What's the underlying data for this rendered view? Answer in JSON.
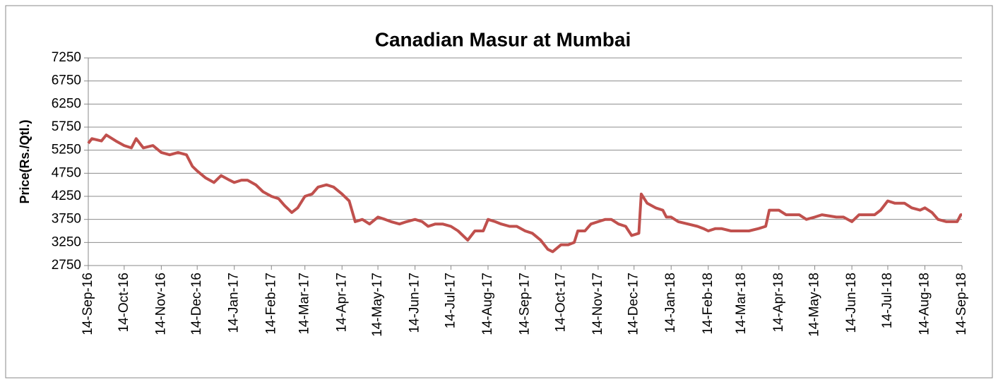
{
  "chart_data": {
    "type": "line",
    "title": "Canadian Masur at Mumbai",
    "y_label": "Price(Rs./Qtl.)",
    "ylim": [
      2750,
      7250
    ],
    "yticks": [
      2750,
      3250,
      3750,
      4250,
      4750,
      5250,
      5750,
      6250,
      6750,
      7250
    ],
    "xlim": [
      "2016-09-14",
      "2018-09-14"
    ],
    "xticks": [
      {
        "value": "2016-09-14",
        "label": "14-Sep-16"
      },
      {
        "value": "2016-10-14",
        "label": "14-Oct-16"
      },
      {
        "value": "2016-11-14",
        "label": "14-Nov-16"
      },
      {
        "value": "2016-12-14",
        "label": "14-Dec-16"
      },
      {
        "value": "2017-01-14",
        "label": "14-Jan-17"
      },
      {
        "value": "2017-02-14",
        "label": "14-Feb-17"
      },
      {
        "value": "2017-03-14",
        "label": "14-Mar-17"
      },
      {
        "value": "2017-04-14",
        "label": "14-Apr-17"
      },
      {
        "value": "2017-05-14",
        "label": "14-May-17"
      },
      {
        "value": "2017-06-14",
        "label": "14-Jun-17"
      },
      {
        "value": "2017-07-14",
        "label": "14-Jul-17"
      },
      {
        "value": "2017-08-14",
        "label": "14-Aug-17"
      },
      {
        "value": "2017-09-14",
        "label": "14-Sep-17"
      },
      {
        "value": "2017-10-14",
        "label": "14-Oct-17"
      },
      {
        "value": "2017-11-14",
        "label": "14-Nov-17"
      },
      {
        "value": "2017-12-14",
        "label": "14-Dec-17"
      },
      {
        "value": "2018-01-14",
        "label": "14-Jan-18"
      },
      {
        "value": "2018-02-14",
        "label": "14-Feb-18"
      },
      {
        "value": "2018-03-14",
        "label": "14-Mar-18"
      },
      {
        "value": "2018-04-14",
        "label": "14-Apr-18"
      },
      {
        "value": "2018-05-14",
        "label": "14-May-18"
      },
      {
        "value": "2018-06-14",
        "label": "14-Jun-18"
      },
      {
        "value": "2018-07-14",
        "label": "14-Jul-18"
      },
      {
        "value": "2018-08-14",
        "label": "14-Aug-18"
      },
      {
        "value": "2018-09-14",
        "label": "14-Sep-18"
      }
    ],
    "grid": true,
    "x": [
      "2016-09-14",
      "2016-09-17",
      "2016-09-25",
      "2016-09-29",
      "2016-10-07",
      "2016-10-14",
      "2016-10-20",
      "2016-10-24",
      "2016-10-30",
      "2016-11-07",
      "2016-11-14",
      "2016-11-21",
      "2016-11-28",
      "2016-12-05",
      "2016-12-10",
      "2016-12-14",
      "2016-12-21",
      "2016-12-28",
      "2017-01-03",
      "2017-01-10",
      "2017-01-14",
      "2017-01-20",
      "2017-01-25",
      "2017-02-01",
      "2017-02-07",
      "2017-02-14",
      "2017-02-20",
      "2017-02-25",
      "2017-03-03",
      "2017-03-08",
      "2017-03-14",
      "2017-03-20",
      "2017-03-25",
      "2017-04-01",
      "2017-04-07",
      "2017-04-14",
      "2017-04-20",
      "2017-04-25",
      "2017-05-01",
      "2017-05-07",
      "2017-05-14",
      "2017-05-20",
      "2017-05-25",
      "2017-06-01",
      "2017-06-07",
      "2017-06-14",
      "2017-06-20",
      "2017-06-25",
      "2017-07-01",
      "2017-07-07",
      "2017-07-14",
      "2017-07-20",
      "2017-07-28",
      "2017-08-03",
      "2017-08-10",
      "2017-08-14",
      "2017-08-20",
      "2017-08-25",
      "2017-09-01",
      "2017-09-07",
      "2017-09-14",
      "2017-09-20",
      "2017-09-27",
      "2017-10-03",
      "2017-10-07",
      "2017-10-14",
      "2017-10-20",
      "2017-10-25",
      "2017-10-28",
      "2017-11-03",
      "2017-11-08",
      "2017-11-14",
      "2017-11-20",
      "2017-11-25",
      "2017-12-01",
      "2017-12-07",
      "2017-12-12",
      "2017-12-18",
      "2017-12-20",
      "2017-12-25",
      "2018-01-01",
      "2018-01-07",
      "2018-01-10",
      "2018-01-14",
      "2018-01-20",
      "2018-01-28",
      "2018-02-05",
      "2018-02-10",
      "2018-02-14",
      "2018-02-20",
      "2018-02-25",
      "2018-03-05",
      "2018-03-14",
      "2018-03-20",
      "2018-03-28",
      "2018-04-03",
      "2018-04-06",
      "2018-04-14",
      "2018-04-20",
      "2018-05-01",
      "2018-05-07",
      "2018-05-14",
      "2018-05-20",
      "2018-06-01",
      "2018-06-07",
      "2018-06-14",
      "2018-06-20",
      "2018-06-28",
      "2018-07-03",
      "2018-07-08",
      "2018-07-14",
      "2018-07-20",
      "2018-07-28",
      "2018-08-03",
      "2018-08-10",
      "2018-08-14",
      "2018-08-20",
      "2018-08-25",
      "2018-09-01",
      "2018-09-10",
      "2018-09-13",
      "2018-09-14"
    ],
    "series": [
      {
        "name": "Canadian Masur",
        "color": "#c0504d",
        "values": [
          5400,
          5500,
          5450,
          5580,
          5450,
          5350,
          5300,
          5500,
          5300,
          5350,
          5200,
          5150,
          5200,
          5150,
          4900,
          4800,
          4650,
          4550,
          4700,
          4600,
          4550,
          4600,
          4600,
          4500,
          4350,
          4250,
          4200,
          4050,
          3900,
          4000,
          4250,
          4300,
          4450,
          4500,
          4450,
          4300,
          4150,
          3700,
          3750,
          3650,
          3800,
          3750,
          3700,
          3650,
          3700,
          3750,
          3700,
          3600,
          3650,
          3650,
          3600,
          3500,
          3300,
          3500,
          3500,
          3750,
          3700,
          3650,
          3600,
          3600,
          3500,
          3450,
          3300,
          3100,
          3050,
          3200,
          3200,
          3250,
          3500,
          3500,
          3650,
          3700,
          3750,
          3750,
          3650,
          3600,
          3400,
          3450,
          4300,
          4100,
          4000,
          3950,
          3800,
          3800,
          3700,
          3650,
          3600,
          3550,
          3500,
          3550,
          3550,
          3500,
          3500,
          3500,
          3550,
          3600,
          3950,
          3950,
          3850,
          3850,
          3750,
          3800,
          3850,
          3800,
          3800,
          3700,
          3850,
          3850,
          3850,
          3950,
          4150,
          4100,
          4100,
          4000,
          3950,
          4000,
          3900,
          3750,
          3700,
          3700,
          3850,
          3850
        ]
      }
    ]
  }
}
